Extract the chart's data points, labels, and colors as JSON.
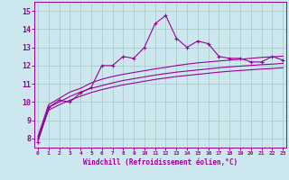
{
  "xlabel": "Windchill (Refroidissement éolien,°C)",
  "bg_color": "#cce8ee",
  "grid_color": "#aacccc",
  "line_color": "#990099",
  "x_ticks": [
    0,
    1,
    2,
    3,
    4,
    5,
    6,
    7,
    8,
    9,
    10,
    11,
    12,
    13,
    14,
    15,
    16,
    17,
    18,
    19,
    20,
    21,
    22,
    23
  ],
  "y_ticks": [
    8,
    9,
    10,
    11,
    12,
    13,
    14,
    15
  ],
  "ylim": [
    7.5,
    15.5
  ],
  "xlim": [
    -0.3,
    23.3
  ],
  "line1_x": [
    0,
    1,
    2,
    3,
    4,
    5,
    6,
    7,
    8,
    9,
    10,
    11,
    12,
    13,
    14,
    15,
    16,
    17,
    18,
    19,
    20,
    21,
    22,
    23
  ],
  "line1_y": [
    7.8,
    9.7,
    10.1,
    10.0,
    10.5,
    10.8,
    12.0,
    12.0,
    12.5,
    12.4,
    13.0,
    14.3,
    14.75,
    13.5,
    13.0,
    13.35,
    13.2,
    12.5,
    12.4,
    12.4,
    12.2,
    12.2,
    12.5,
    12.3
  ],
  "line2_x": [
    0,
    1,
    2,
    3,
    4,
    5,
    6,
    7,
    8,
    9,
    10,
    11,
    12,
    13,
    14,
    15,
    16,
    17,
    18,
    19,
    20,
    21,
    22,
    23
  ],
  "line2_y": [
    8.1,
    9.85,
    10.2,
    10.55,
    10.75,
    11.05,
    11.25,
    11.4,
    11.52,
    11.62,
    11.72,
    11.82,
    11.9,
    12.0,
    12.08,
    12.15,
    12.2,
    12.25,
    12.3,
    12.35,
    12.4,
    12.45,
    12.48,
    12.52
  ],
  "line3_x": [
    0,
    1,
    2,
    3,
    4,
    5,
    6,
    7,
    8,
    9,
    10,
    11,
    12,
    13,
    14,
    15,
    16,
    17,
    18,
    19,
    20,
    21,
    22,
    23
  ],
  "line3_y": [
    8.0,
    9.7,
    10.0,
    10.3,
    10.55,
    10.75,
    10.9,
    11.05,
    11.18,
    11.28,
    11.38,
    11.48,
    11.56,
    11.64,
    11.7,
    11.76,
    11.82,
    11.88,
    11.93,
    11.97,
    12.01,
    12.05,
    12.08,
    12.12
  ],
  "line4_x": [
    0,
    1,
    2,
    3,
    4,
    5,
    6,
    7,
    8,
    9,
    10,
    11,
    12,
    13,
    14,
    15,
    16,
    17,
    18,
    19,
    20,
    21,
    22,
    23
  ],
  "line4_y": [
    7.9,
    9.55,
    9.85,
    10.1,
    10.32,
    10.52,
    10.68,
    10.82,
    10.94,
    11.04,
    11.14,
    11.24,
    11.32,
    11.4,
    11.46,
    11.52,
    11.58,
    11.64,
    11.69,
    11.73,
    11.77,
    11.81,
    11.84,
    11.88
  ]
}
